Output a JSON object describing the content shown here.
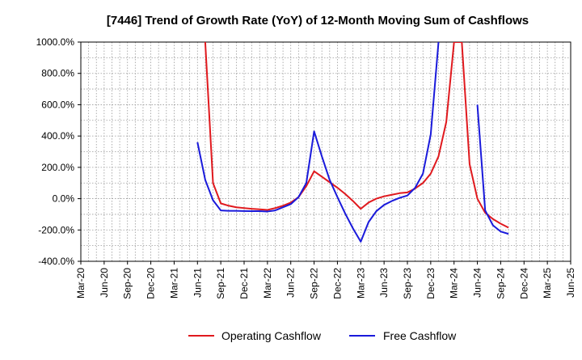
{
  "chart_data": {
    "type": "line",
    "title": "[7446]  Trend of Growth Rate (YoY) of 12-Month Moving Sum of Cashflows",
    "xlabel": "",
    "ylabel": "",
    "ylim": [
      -400,
      1000
    ],
    "y_ticks": [
      1000,
      800,
      600,
      400,
      200,
      0,
      -200,
      -400
    ],
    "y_tick_labels": [
      "1000.0%",
      "800.0%",
      "600.0%",
      "400.0%",
      "200.0%",
      "0.0%",
      "-200.0%",
      "-400.0%"
    ],
    "x_tick_labels": [
      "Mar-20",
      "Jun-20",
      "Sep-20",
      "Dec-20",
      "Mar-21",
      "Jun-21",
      "Sep-21",
      "Dec-21",
      "Mar-22",
      "Jun-22",
      "Sep-22",
      "Dec-22",
      "Mar-23",
      "Jun-23",
      "Sep-23",
      "Dec-23",
      "Mar-24",
      "Jun-24",
      "Sep-24",
      "Dec-24",
      "Mar-25",
      "Jun-25"
    ],
    "x_month_range": [
      "2020-03",
      "2025-06"
    ],
    "grid": true,
    "legend_position": "bottom-center",
    "series": [
      {
        "name": "Operating Cashflow",
        "color": "#e0191e",
        "points": [
          [
            "2021-07",
            1000
          ],
          [
            "2021-08",
            100
          ],
          [
            "2021-09",
            -30
          ],
          [
            "2021-10",
            -45
          ],
          [
            "2021-11",
            -55
          ],
          [
            "2021-12",
            -60
          ],
          [
            "2022-01",
            -65
          ],
          [
            "2022-02",
            -68
          ],
          [
            "2022-03",
            -72
          ],
          [
            "2022-04",
            -60
          ],
          [
            "2022-05",
            -45
          ],
          [
            "2022-06",
            -25
          ],
          [
            "2022-07",
            10
          ],
          [
            "2022-08",
            80
          ],
          [
            "2022-09",
            175
          ],
          [
            "2022-10",
            140
          ],
          [
            "2022-11",
            105
          ],
          [
            "2022-12",
            70
          ],
          [
            "2023-01",
            30
          ],
          [
            "2023-02",
            -15
          ],
          [
            "2023-03",
            -65
          ],
          [
            "2023-04",
            -25
          ],
          [
            "2023-05",
            0
          ],
          [
            "2023-06",
            15
          ],
          [
            "2023-07",
            25
          ],
          [
            "2023-08",
            35
          ],
          [
            "2023-09",
            40
          ],
          [
            "2023-10",
            65
          ],
          [
            "2023-11",
            100
          ],
          [
            "2023-12",
            160
          ],
          [
            "2024-01",
            270
          ],
          [
            "2024-02",
            490
          ],
          [
            "2024-03",
            1000
          ],
          [
            "2024-04",
            1000
          ],
          [
            "2024-05",
            220
          ],
          [
            "2024-06",
            0
          ],
          [
            "2024-07",
            -90
          ],
          [
            "2024-08",
            -130
          ],
          [
            "2024-09",
            -160
          ],
          [
            "2024-10",
            -185
          ]
        ]
      },
      {
        "name": "Free Cashflow",
        "color": "#1a1adb",
        "segments": [
          [
            [
              "2021-06",
              360
            ],
            [
              "2021-07",
              120
            ],
            [
              "2021-08",
              -10
            ],
            [
              "2021-09",
              -75
            ],
            [
              "2021-10",
              -78
            ],
            [
              "2021-11",
              -78
            ],
            [
              "2021-12",
              -79
            ],
            [
              "2022-01",
              -80
            ],
            [
              "2022-02",
              -80
            ],
            [
              "2022-03",
              -82
            ],
            [
              "2022-04",
              -75
            ],
            [
              "2022-05",
              -55
            ],
            [
              "2022-06",
              -35
            ],
            [
              "2022-07",
              10
            ],
            [
              "2022-08",
              100
            ],
            [
              "2022-09",
              430
            ],
            [
              "2022-10",
              270
            ],
            [
              "2022-11",
              120
            ],
            [
              "2022-12",
              10
            ],
            [
              "2023-01",
              -95
            ],
            [
              "2023-02",
              -190
            ],
            [
              "2023-03",
              -275
            ],
            [
              "2023-04",
              -150
            ],
            [
              "2023-05",
              -80
            ],
            [
              "2023-06",
              -40
            ],
            [
              "2023-07",
              -15
            ],
            [
              "2023-08",
              5
            ],
            [
              "2023-09",
              20
            ],
            [
              "2023-10",
              70
            ],
            [
              "2023-11",
              160
            ],
            [
              "2023-12",
              410
            ],
            [
              "2024-01",
              1000
            ]
          ],
          [
            [
              "2024-06",
              600
            ],
            [
              "2024-07",
              -75
            ],
            [
              "2024-08",
              -170
            ],
            [
              "2024-09",
              -210
            ],
            [
              "2024-10",
              -225
            ]
          ]
        ]
      }
    ]
  }
}
